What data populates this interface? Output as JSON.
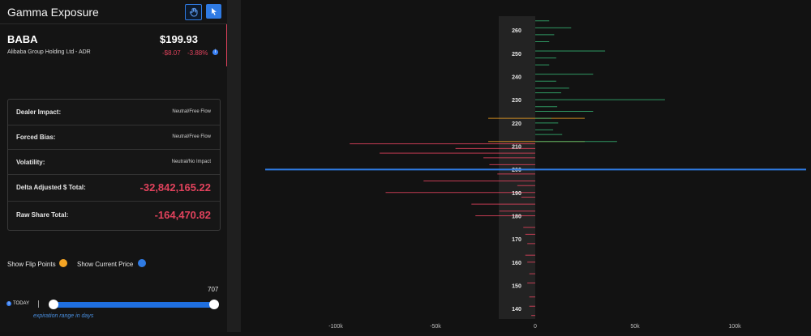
{
  "app": {
    "title": "Gamma Exposure"
  },
  "toolbar": {
    "hand_icon": "hand-icon",
    "pointer_icon": "pointer-icon"
  },
  "stock": {
    "ticker": "BABA",
    "company": "Alibaba Group Holding Ltd - ADR",
    "price": "$199.93",
    "change": "-$8.07",
    "change_pct": "-3.88%",
    "info_icon": "i"
  },
  "metrics": {
    "dealer_impact": {
      "label": "Dealer Impact:",
      "value": "Neutral/Free Flow"
    },
    "forced_bias": {
      "label": "Forced Bias:",
      "value": "Neutral/Free Flow"
    },
    "volatility": {
      "label": "Volatility:",
      "value": "Neutral/No Impact"
    },
    "delta_adjusted": {
      "label": "Delta Adjusted $ Total:",
      "value": "-32,842,165.22"
    },
    "raw_share": {
      "label": "Raw Share Total:",
      "value": "-164,470.82"
    }
  },
  "toggles": {
    "flip_points": {
      "label": "Show Flip Points",
      "color": "#f5a524"
    },
    "current_price": {
      "label": "Show Current Price",
      "color": "#2f7be4"
    }
  },
  "slider": {
    "today_label": "TODAY",
    "max_value": "707",
    "caption": "expiration range in days",
    "range_min_fraction": 0,
    "range_max_fraction": 1
  },
  "colors": {
    "accent_red": "#e0425c",
    "accent_green": "#35b070",
    "accent_blue": "#2f7be4",
    "flip_orange": "#f5a524"
  },
  "chart_data": {
    "type": "bar",
    "orientation": "horizontal",
    "title": "",
    "xlabel": "",
    "ylabel": "",
    "x_ticks": [
      "-100k",
      "-50k",
      "0",
      "50k",
      "100k"
    ],
    "x_tick_values": [
      -100000,
      -50000,
      0,
      50000,
      100000
    ],
    "y_ticks": [
      260,
      250,
      240,
      230,
      220,
      210,
      200,
      190,
      180,
      170,
      160,
      150,
      140
    ],
    "xlim": [
      -135000,
      135000
    ],
    "ylim": [
      135.5,
      266
    ],
    "current_price": 199.93,
    "flip_points": [
      222,
      212
    ],
    "bars": [
      {
        "strike": 264,
        "value": 7000
      },
      {
        "strike": 261,
        "value": 18000
      },
      {
        "strike": 258,
        "value": 9500
      },
      {
        "strike": 255,
        "value": 7000
      },
      {
        "strike": 251,
        "value": 35000
      },
      {
        "strike": 248,
        "value": 10500
      },
      {
        "strike": 245,
        "value": 7000
      },
      {
        "strike": 241,
        "value": 29000
      },
      {
        "strike": 238,
        "value": 10500
      },
      {
        "strike": 235,
        "value": 17000
      },
      {
        "strike": 233,
        "value": 13000
      },
      {
        "strike": 230,
        "value": 65000
      },
      {
        "strike": 227,
        "value": 11000
      },
      {
        "strike": 225,
        "value": 29000
      },
      {
        "strike": 222,
        "value": 8000
      },
      {
        "strike": 220,
        "value": 11500
      },
      {
        "strike": 217,
        "value": 9000
      },
      {
        "strike": 215,
        "value": 13500
      },
      {
        "strike": 212,
        "value": 41000
      },
      {
        "strike": 211,
        "value": -93000
      },
      {
        "strike": 209,
        "value": -40000
      },
      {
        "strike": 207,
        "value": -78000
      },
      {
        "strike": 205,
        "value": -26000
      },
      {
        "strike": 202,
        "value": -23000
      },
      {
        "strike": 198,
        "value": -19000
      },
      {
        "strike": 195,
        "value": -56000
      },
      {
        "strike": 193,
        "value": -9000
      },
      {
        "strike": 190,
        "value": -75000
      },
      {
        "strike": 188,
        "value": -7000
      },
      {
        "strike": 185,
        "value": -32000
      },
      {
        "strike": 182,
        "value": -18000
      },
      {
        "strike": 180,
        "value": -30000
      },
      {
        "strike": 175,
        "value": -6000
      },
      {
        "strike": 172,
        "value": -5000
      },
      {
        "strike": 168,
        "value": -4000
      },
      {
        "strike": 163,
        "value": -5000
      },
      {
        "strike": 160,
        "value": -4000
      },
      {
        "strike": 155,
        "value": -3000
      },
      {
        "strike": 151,
        "value": -4000
      },
      {
        "strike": 145,
        "value": -3000
      },
      {
        "strike": 141,
        "value": -3000
      },
      {
        "strike": 137,
        "value": -2000
      }
    ],
    "grid": false,
    "legend": "none"
  }
}
